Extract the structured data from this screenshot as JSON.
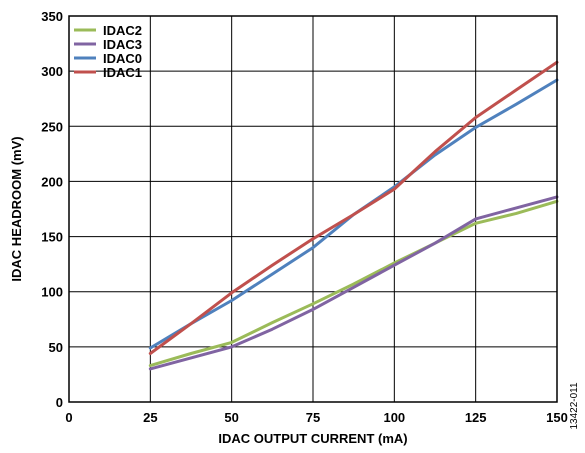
{
  "chart_data": {
    "type": "line",
    "title": "",
    "xlabel": "IDAC OUTPUT CURRENT (mA)",
    "ylabel": "IDAC HEADROOM (mV)",
    "xlim": [
      0,
      150
    ],
    "ylim": [
      0,
      350
    ],
    "x_ticks": [
      0,
      25,
      50,
      75,
      100,
      125,
      150
    ],
    "y_ticks": [
      0,
      50,
      100,
      150,
      200,
      250,
      300,
      350
    ],
    "grid": true,
    "legend_position": "top-left",
    "series": [
      {
        "name": "IDAC2",
        "color": "#9bbb59",
        "x": [
          25,
          37.5,
          50,
          62.5,
          75,
          87.5,
          100,
          112.5,
          125,
          137.5,
          150
        ],
        "y": [
          33,
          44,
          54,
          72,
          89,
          107,
          126,
          144,
          162,
          171,
          182
        ]
      },
      {
        "name": "IDAC3",
        "color": "#8064a2",
        "x": [
          25,
          37.5,
          50,
          62.5,
          75,
          87.5,
          100,
          112.5,
          125,
          137.5,
          150
        ],
        "y": [
          30,
          40,
          50,
          66,
          84,
          104,
          124,
          144,
          166,
          176,
          186
        ]
      },
      {
        "name": "IDAC0",
        "color": "#4f81bd",
        "x": [
          25,
          37.5,
          50,
          62.5,
          75,
          87.5,
          100,
          112.5,
          125,
          137.5,
          150
        ],
        "y": [
          49,
          71,
          92,
          116,
          140,
          170,
          195,
          224,
          249,
          270,
          292
        ]
      },
      {
        "name": "IDAC1",
        "color": "#c0504d",
        "x": [
          25,
          37.5,
          50,
          62.5,
          75,
          87.5,
          100,
          112.5,
          125,
          137.5,
          150
        ],
        "y": [
          44,
          71,
          99,
          124,
          148,
          170,
          193,
          227,
          258,
          283,
          308
        ]
      }
    ]
  },
  "figure_id": "13422-011"
}
